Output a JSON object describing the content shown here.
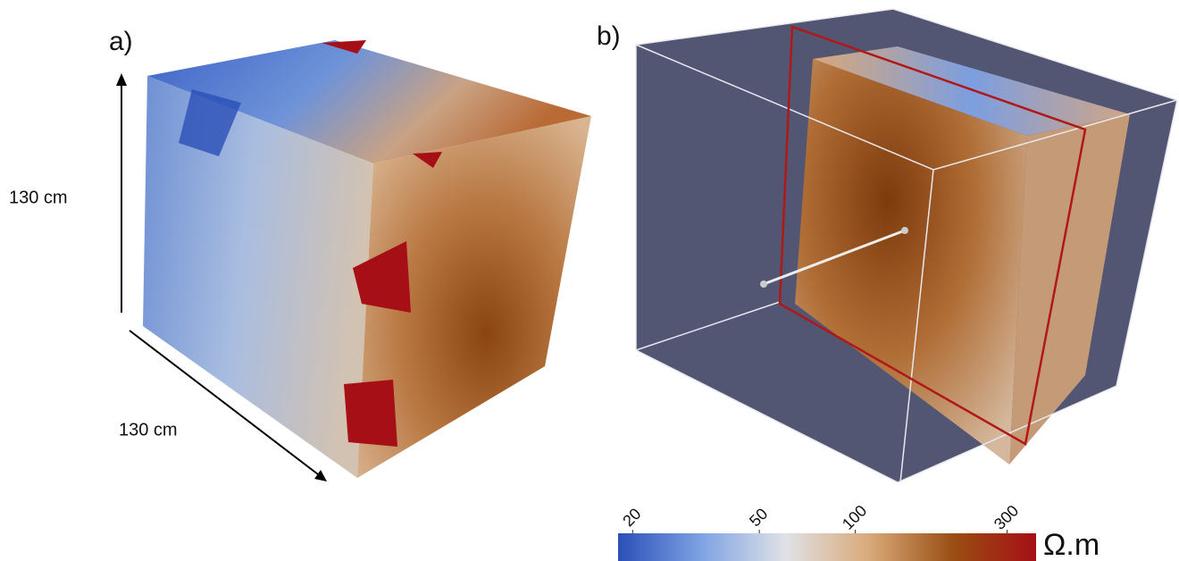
{
  "panels": [
    {
      "label": "a)",
      "dimensions": [
        "130 cm",
        "130 cm"
      ]
    },
    {
      "label": "b)"
    }
  ],
  "colorbar": {
    "ticks": [
      20,
      50,
      100,
      300
    ],
    "lim": [
      18,
      370
    ],
    "log": true,
    "unit": "Ω.m",
    "colors": [
      "#2a4fb8",
      "#7fa3e3",
      "#dfe1e6",
      "#d9aa7a",
      "#9a4f14",
      "#a50f15"
    ]
  }
}
